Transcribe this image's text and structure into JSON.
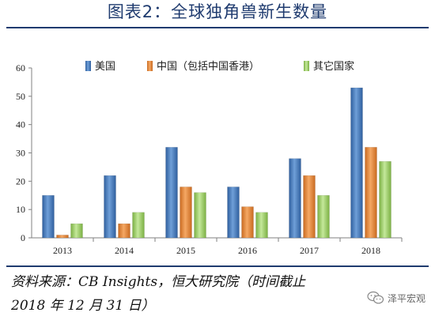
{
  "title": "图表2：全球独角兽新生数量",
  "source_line1": "资料来源：CB Insights，恒大研究院（时间截止",
  "source_line2": "2018 年 12 月 31 日）",
  "watermark": "泽平宏观",
  "watermark_icon": "wechat-icon",
  "colors": {
    "title": "#1f3b6f",
    "usa": "#4a7ebb",
    "china": "#e7863a",
    "other": "#9bcb5e"
  },
  "chart_data": {
    "type": "bar",
    "categories": [
      "2013",
      "2014",
      "2015",
      "2016",
      "2017",
      "2018"
    ],
    "series": [
      {
        "name": "美国",
        "values": [
          15,
          22,
          32,
          18,
          28,
          53
        ]
      },
      {
        "name": "中国（包括中国香港）",
        "values": [
          1,
          5,
          18,
          11,
          22,
          32
        ]
      },
      {
        "name": "其它国家",
        "values": [
          5,
          9,
          16,
          9,
          15,
          27
        ]
      }
    ],
    "ylim": [
      0,
      60
    ],
    "yticks": [
      0,
      10,
      20,
      30,
      40,
      50,
      60
    ],
    "legend_position": "top",
    "grid": false,
    "xlabel": "",
    "ylabel": ""
  }
}
